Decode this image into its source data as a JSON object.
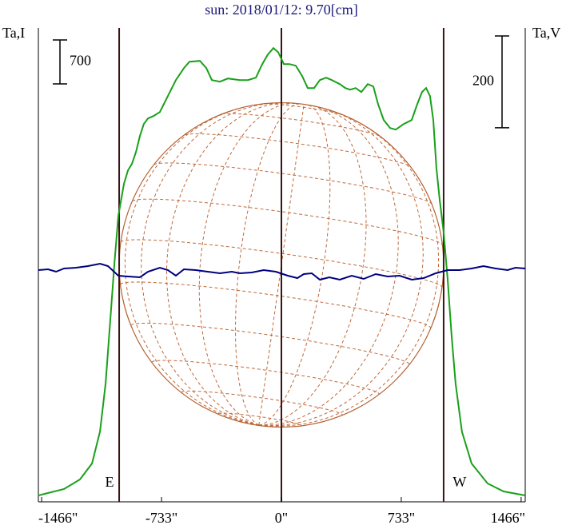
{
  "chart_data": {
    "type": "line",
    "title": "sun: 2018/01/12: 9.70[cm]",
    "y_label": "Ta,I",
    "y2_label": "Ta,V",
    "xlim": [
      -1486,
      1491
    ],
    "ylim": [
      0,
      7550
    ],
    "y2lim": [
      -516,
      516
    ],
    "xticks": [
      {
        "value": -1466,
        "label": "-1466\""
      },
      {
        "value": -733,
        "label": "-733\""
      },
      {
        "value": 0,
        "label": "0\""
      },
      {
        "value": 733,
        "label": "733\""
      },
      {
        "value": 1466,
        "label": "1466\""
      }
    ],
    "scale_bars": [
      {
        "value": 700,
        "axis": "y"
      },
      {
        "value": 200,
        "axis": "y2"
      }
    ],
    "disk_radius": 992,
    "limb_labels": [
      "E",
      "W"
    ],
    "series": [
      {
        "name": "Ta,I",
        "color": "#1aa01a",
        "x": [
          -1486,
          -1329,
          -1232,
          -1158,
          -1109,
          -1075,
          -1046,
          -1021,
          -997,
          -963,
          -938,
          -914,
          -889,
          -865,
          -841,
          -816,
          -782,
          -743,
          -694,
          -645,
          -596,
          -562,
          -498,
          -459,
          -425,
          -376,
          -327,
          -254,
          -205,
          -156,
          -117,
          -83,
          -49,
          -20,
          15,
          49,
          88,
          127,
          161,
          200,
          235,
          274,
          308,
          357,
          391,
          420,
          454,
          489,
          528,
          562,
          591,
          626,
          665,
          699,
          748,
          797,
          831,
          860,
          885,
          909,
          929,
          948,
          968,
          992,
          1017,
          1041,
          1065,
          1104,
          1163,
          1261,
          1359,
          1491
        ],
        "values": [
          102,
          204,
          356,
          611,
          1120,
          1884,
          2902,
          3793,
          4556,
          5065,
          5282,
          5384,
          5574,
          5829,
          6020,
          6109,
          6147,
          6211,
          6465,
          6720,
          6911,
          7013,
          7025,
          6911,
          6720,
          6694,
          6745,
          6720,
          6720,
          6758,
          6974,
          7127,
          7229,
          7165,
          6974,
          6974,
          6949,
          6783,
          6593,
          6593,
          6720,
          6758,
          6720,
          6656,
          6593,
          6567,
          6593,
          6529,
          6656,
          6618,
          6338,
          6083,
          5956,
          5931,
          6020,
          6083,
          6338,
          6529,
          6593,
          6465,
          6083,
          5320,
          4811,
          4302,
          3538,
          2647,
          1884,
          1120,
          611,
          293,
          165,
          102
        ]
      },
      {
        "name": "Ta,V",
        "color": "#000080",
        "axis": "y2",
        "x": [
          -1486,
          -1427,
          -1378,
          -1329,
          -1256,
          -1183,
          -1109,
          -1060,
          -997,
          -938,
          -865,
          -816,
          -743,
          -694,
          -645,
          -596,
          -523,
          -450,
          -376,
          -303,
          -254,
          -181,
          -108,
          -34,
          39,
          98,
          137,
          186,
          235,
          293,
          357,
          430,
          503,
          577,
          650,
          723,
          797,
          870,
          943,
          1017,
          1090,
          1163,
          1236,
          1310,
          1383,
          1432,
          1491
        ],
        "values": [
          -11.3,
          -9.6,
          -14.8,
          -7.8,
          -6.1,
          -2.6,
          2.6,
          -2.6,
          -23.5,
          -25.2,
          -27.0,
          -14.8,
          -6.1,
          -11.3,
          -23.5,
          -9.6,
          -11.3,
          -14.8,
          -18.3,
          -14.8,
          -18.3,
          -16.5,
          -11.3,
          -14.8,
          -23.5,
          -28.7,
          -20.0,
          -18.3,
          -32.2,
          -27.0,
          -32.2,
          -23.5,
          -30.4,
          -20.0,
          -25.2,
          -23.5,
          -32.2,
          -28.7,
          -18.3,
          -11.3,
          -11.3,
          -7.8,
          -2.6,
          -7.8,
          -11.3,
          -6.1,
          -7.8
        ]
      }
    ]
  }
}
